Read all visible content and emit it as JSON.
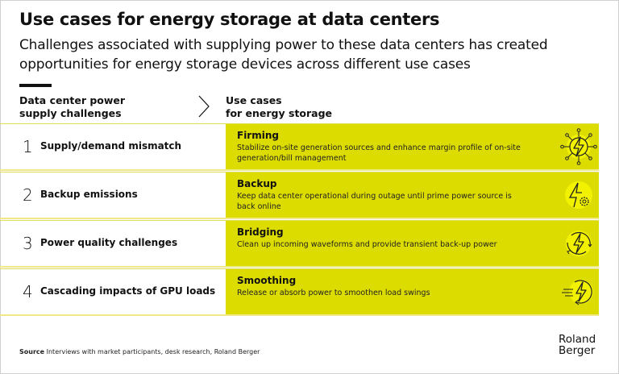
{
  "title": "Use cases for energy storage at data centers",
  "subtitle": "Challenges associated with supplying power to these data centers has created opportunities for energy storage devices across different use cases",
  "columns": {
    "left": [
      "Data center power",
      "supply challenges"
    ],
    "right": [
      "Use cases",
      "for energy storage"
    ]
  },
  "rows": [
    {
      "num": "1",
      "challenge": "Supply/demand mismatch",
      "use_case": "Firming",
      "description": "Stabilize on-site generation sources and enhance margin profile of on-site generation/bill management",
      "icon": "grid-bolt-icon"
    },
    {
      "num": "2",
      "challenge": "Backup emissions",
      "use_case": "Backup",
      "description": "Keep data center operational during outage until prime power source is back online",
      "icon": "bolt-gear-icon"
    },
    {
      "num": "3",
      "challenge": "Power quality challenges",
      "use_case": "Bridging",
      "description": "Clean up incoming waveforms and provide transient back-up power",
      "icon": "bolt-cycle-icon"
    },
    {
      "num": "4",
      "challenge": "Cascading impacts of GPU loads",
      "use_case": "Smoothing",
      "description": "Release or absorb power to smoothen load swings",
      "icon": "bolt-speed-icon"
    }
  ],
  "source": {
    "label": "Source",
    "text": "Interviews with market participants, desk research, Roland Berger"
  },
  "logo": [
    "Roland",
    "Berger"
  ],
  "colors": {
    "accent": "#dcdc00",
    "icon_bg": "#f2f200",
    "divider": "#e3dc5a"
  }
}
